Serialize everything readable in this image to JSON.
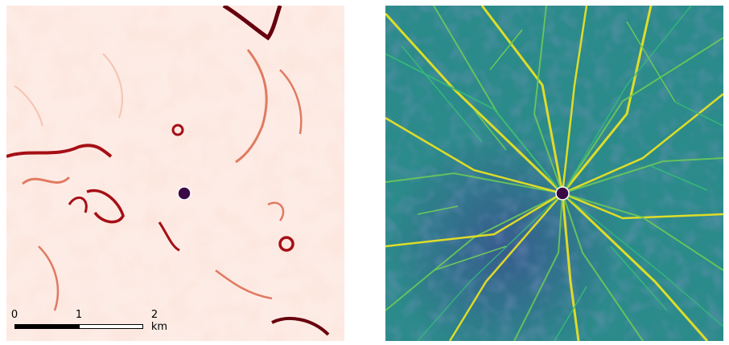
{
  "panels": [
    {
      "name": "left-map",
      "palette": {
        "base": "#fdece6",
        "light": "#f6c4b2",
        "mid": "#e07a62",
        "dark": "#a50f15",
        "darkest": "#67000d"
      }
    },
    {
      "name": "right-map",
      "palette": {
        "base": "#2b8a8a",
        "low": "#3b4d8f",
        "line_mid": "#6cc85a",
        "line_high": "#f1e51d",
        "line_low": "#35b779"
      }
    }
  ],
  "marker": {
    "fill": "#3b0a45",
    "stroke": "#ffffff"
  },
  "scale_bar": {
    "labels": [
      "0",
      "1",
      "2 km"
    ]
  }
}
